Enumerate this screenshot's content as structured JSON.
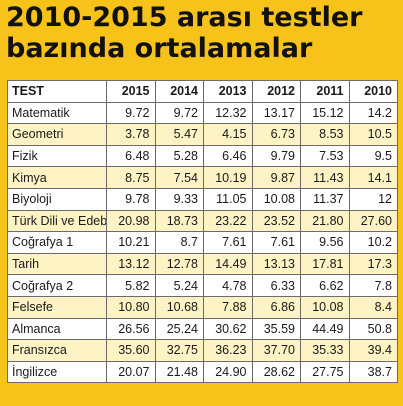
{
  "chart_data": {
    "type": "table",
    "title_lines": [
      "2010-2015 arası testler",
      "bazında ortalamalar"
    ],
    "header_label": "TEST",
    "columns": [
      "2015",
      "2014",
      "2013",
      "2012",
      "2011",
      "2010"
    ],
    "rows": [
      {
        "label": "Matematik",
        "values": [
          "9.72",
          "9.72",
          "12.32",
          "13.17",
          "15.12",
          "14.2"
        ]
      },
      {
        "label": "Geometri",
        "values": [
          "3.78",
          "5.47",
          "4.15",
          "6.73",
          "8.53",
          "10.5"
        ]
      },
      {
        "label": "Fizik",
        "values": [
          "6.48",
          "5.28",
          "6.46",
          "9.79",
          "7.53",
          "9.5"
        ]
      },
      {
        "label": "Kimya",
        "values": [
          "8.75",
          "7.54",
          "10.19",
          "9.87",
          "11.43",
          "14.1"
        ]
      },
      {
        "label": "Biyoloji",
        "values": [
          "9.78",
          "9.33",
          "11.05",
          "10.08",
          "11.37",
          "12"
        ]
      },
      {
        "label": "Türk Dili ve Edeb.",
        "values": [
          "20.98",
          "18.73",
          "23.22",
          "23.52",
          "21.80",
          "27.60"
        ]
      },
      {
        "label": "Coğrafya 1",
        "values": [
          "10.21",
          "8.7",
          "7.61",
          "7.61",
          "9.56",
          "10.2"
        ]
      },
      {
        "label": "Tarih",
        "values": [
          "13.12",
          "12.78",
          "14.49",
          "13.13",
          "17.81",
          "17.3"
        ]
      },
      {
        "label": "Coğrafya 2",
        "values": [
          "5.82",
          "5.24",
          "4.78",
          "6.33",
          "6.62",
          "7.8"
        ]
      },
      {
        "label": "Felsefe",
        "values": [
          "10.80",
          "10.68",
          "7.88",
          "6.86",
          "10.08",
          "8.4"
        ]
      },
      {
        "label": "Almanca",
        "values": [
          "26.56",
          "25.24",
          "30.62",
          "35.59",
          "44.49",
          "50.8"
        ]
      },
      {
        "label": "Fransızca",
        "values": [
          "35.60",
          "32.75",
          "36.23",
          "37.70",
          "35.33",
          "39.4"
        ]
      },
      {
        "label": "İngilizce",
        "values": [
          "20.07",
          "21.48",
          "24.90",
          "28.62",
          "27.75",
          "38.7"
        ]
      }
    ]
  }
}
